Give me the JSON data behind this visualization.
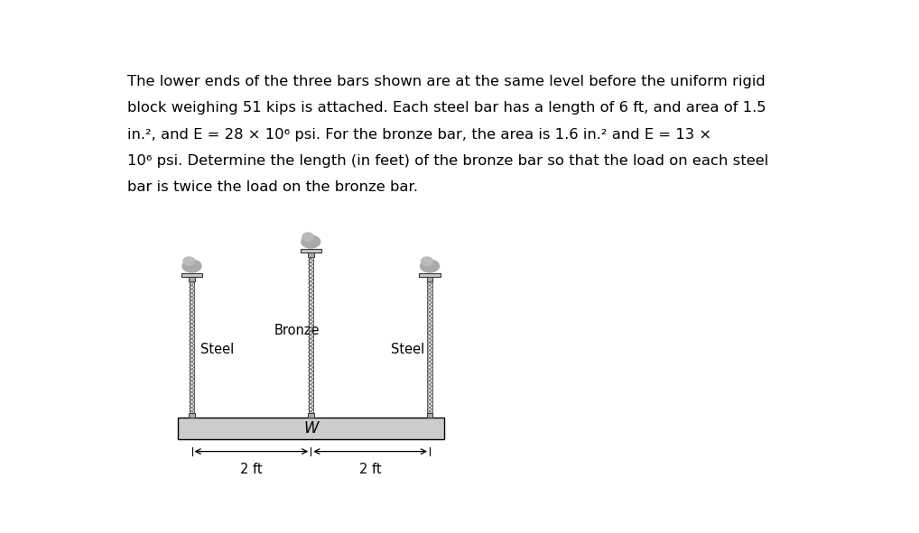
{
  "background_color": "#ffffff",
  "text_color": "#000000",
  "block_fill": "#cccccc",
  "block_edge": "#000000",
  "bar_fill": "#bbbbbb",
  "bar_edge": "#444444",
  "anchor_fill": "#999999",
  "anchor_edge": "#333333",
  "rock_fill": "#aaaaaa",
  "label_bronze": "Bronze",
  "label_steel": "Steel",
  "label_W": "W",
  "label_2ft_left": "2 ft",
  "label_2ft_right": "2 ft",
  "fig_width": 10.18,
  "fig_height": 5.91,
  "dpi": 100,
  "text_lines": [
    "The lower ends of the three bars shown are at the same level before the uniform rigid",
    "block weighing 51 kips is attached. Each steel bar has a length of 6 ft, and area of 1.5",
    "in.², and E = 28 × 10⁶ psi. For the bronze bar, the area is 1.6 in.² and E = 13 ×",
    "10⁶ psi. Determine the length (in feet) of the bronze bar so that the load on each steel",
    "bar is twice the load on the bronze bar."
  ]
}
